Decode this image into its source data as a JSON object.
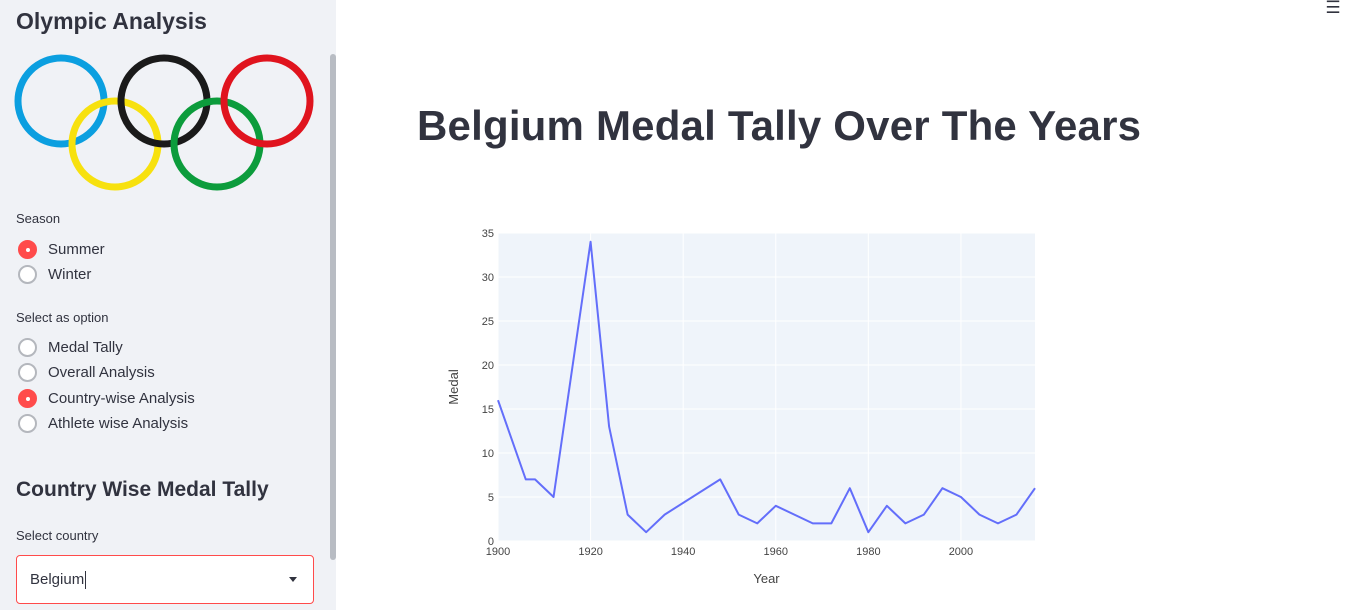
{
  "sidebar": {
    "title": "Olympic Analysis",
    "season_label": "Season",
    "season_options": [
      {
        "label": "Summer",
        "checked": true
      },
      {
        "label": "Winter",
        "checked": false
      }
    ],
    "option_label": "Select as option",
    "options": [
      {
        "label": "Medal Tally",
        "checked": false
      },
      {
        "label": "Overall Analysis",
        "checked": false
      },
      {
        "label": "Country-wise Analysis",
        "checked": true
      },
      {
        "label": "Athlete wise Analysis",
        "checked": false
      }
    ],
    "subheader": "Country Wise Medal Tally",
    "country_label": "Select country",
    "country_value": "Belgium",
    "ring_colors": [
      "#0b9fe0",
      "#1a1a1a",
      "#e0141e",
      "#f7e10e",
      "#0c9c3c"
    ]
  },
  "main": {
    "title": "Belgium Medal Tally Over The Years",
    "menu_icon": "hamburger-icon"
  },
  "chart_data": {
    "type": "line",
    "title": "",
    "xlabel": "Year",
    "ylabel": "Medal",
    "xlim": [
      1900,
      2016
    ],
    "ylim": [
      0,
      35
    ],
    "xticks": [
      1900,
      1920,
      1940,
      1960,
      1980,
      2000
    ],
    "yticks": [
      0,
      5,
      10,
      15,
      20,
      25,
      30,
      35
    ],
    "line_color": "#636efa",
    "series": [
      {
        "name": "Medal",
        "x": [
          1900,
          1906,
          1908,
          1912,
          1920,
          1924,
          1928,
          1932,
          1936,
          1948,
          1952,
          1956,
          1960,
          1968,
          1972,
          1976,
          1980,
          1984,
          1988,
          1992,
          1996,
          2000,
          2004,
          2008,
          2012,
          2016
        ],
        "y": [
          16,
          7,
          7,
          5,
          34,
          13,
          3,
          1,
          3,
          7,
          3,
          2,
          4,
          2,
          2,
          6,
          1,
          4,
          2,
          3,
          6,
          5,
          3,
          2,
          3,
          6
        ]
      }
    ]
  }
}
